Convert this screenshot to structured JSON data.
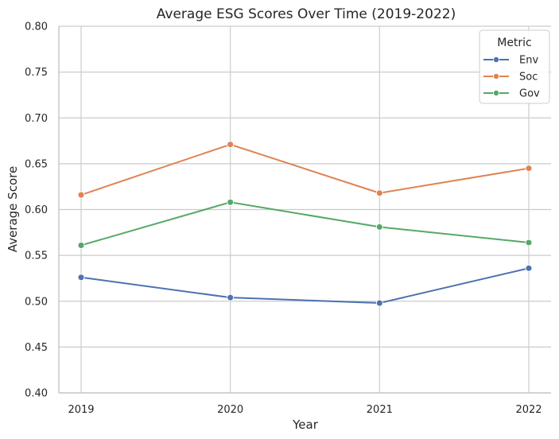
{
  "chart_data": {
    "type": "line",
    "title": "Average ESG Scores Over Time (2019-2022)",
    "xlabel": "Year",
    "ylabel": "Average Score",
    "x": [
      "2019",
      "2020",
      "2021",
      "2022"
    ],
    "ylim": [
      0.4,
      0.8
    ],
    "yticks": [
      "0.40",
      "0.45",
      "0.50",
      "0.55",
      "0.60",
      "0.65",
      "0.70",
      "0.75",
      "0.80"
    ],
    "grid": true,
    "legend": {
      "title": "Metric",
      "placement": "top-right"
    },
    "series": [
      {
        "name": "Env",
        "color": "#4c72b0",
        "values": [
          0.526,
          0.504,
          0.498,
          0.536
        ]
      },
      {
        "name": "Soc",
        "color": "#dd8452",
        "values": [
          0.616,
          0.671,
          0.618,
          0.645
        ]
      },
      {
        "name": "Gov",
        "color": "#55a868",
        "values": [
          0.561,
          0.608,
          0.581,
          0.564
        ]
      }
    ]
  }
}
